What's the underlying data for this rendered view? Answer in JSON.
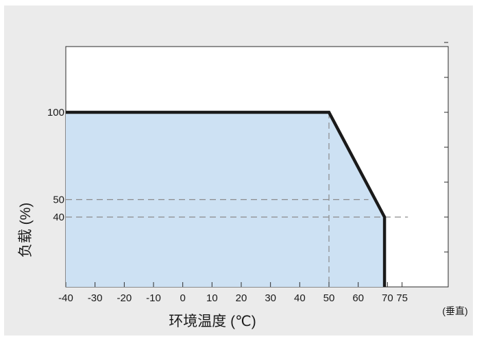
{
  "chart_data": {
    "type": "area",
    "title": "",
    "xlabel": "环境温度 (℃)",
    "ylabel": "负载 (%)",
    "orientation_note": "(垂直)",
    "x_ticks": [
      -40,
      -30,
      -20,
      -10,
      0,
      10,
      20,
      30,
      40,
      50,
      60,
      70,
      75
    ],
    "x_tick_labels": [
      "-40",
      "-30",
      "-20",
      "-10",
      "0",
      "10",
      "20",
      "30",
      "40",
      "50",
      "60",
      "70",
      "75"
    ],
    "y_tick_labels": [
      "100",
      "50",
      "40"
    ],
    "y_ticks_labeled": [
      100,
      50,
      40
    ],
    "y_ticks_right": [
      20,
      40,
      60,
      80,
      100,
      120,
      140
    ],
    "xlim": [
      -40,
      90
    ],
    "ylim": [
      0,
      140
    ],
    "grid": false,
    "series": [
      {
        "x": [
          -40,
          50,
          69,
          69
        ],
        "y": [
          100,
          100,
          40,
          0
        ]
      }
    ],
    "reference_lines": [
      {
        "axis": "y",
        "value": 50,
        "style": "dashed"
      },
      {
        "axis": "y",
        "value": 40,
        "style": "dashed"
      },
      {
        "axis": "x",
        "value": 50,
        "style": "dashed"
      }
    ],
    "colors": {
      "background": "#ebebeb",
      "fill": "#cde1f3",
      "line": "#1a1a1a",
      "dash": "#8a8a8a"
    }
  }
}
